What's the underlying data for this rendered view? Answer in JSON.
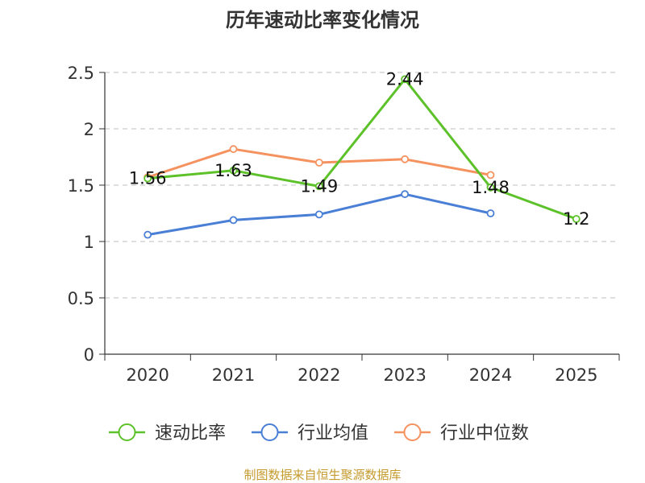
{
  "chart_data": {
    "type": "line",
    "title": "历年速动比率变化情况",
    "categories": [
      "2020",
      "2021",
      "2022",
      "2023",
      "2024",
      "2025"
    ],
    "ylim": [
      0,
      2.5
    ],
    "yticks": [
      "0",
      "0.5",
      "1",
      "1.5",
      "2",
      "2.5"
    ],
    "grid": true,
    "legend_position": "bottom",
    "series": [
      {
        "name": "速动比率",
        "color": "#5dc12a",
        "values": [
          1.56,
          1.63,
          1.49,
          2.44,
          1.48,
          1.2
        ],
        "labels": [
          "1.56",
          "1.63",
          "1.49",
          "2.44",
          "1.48",
          "1.2"
        ]
      },
      {
        "name": "行业均值",
        "color": "#4a7fd6",
        "values": [
          1.06,
          1.19,
          1.24,
          1.42,
          1.25,
          null
        ]
      },
      {
        "name": "行业中位数",
        "color": "#f59360",
        "values": [
          1.57,
          1.82,
          1.7,
          1.73,
          1.59,
          null
        ]
      }
    ]
  },
  "source": "制图数据来自恒生聚源数据库"
}
